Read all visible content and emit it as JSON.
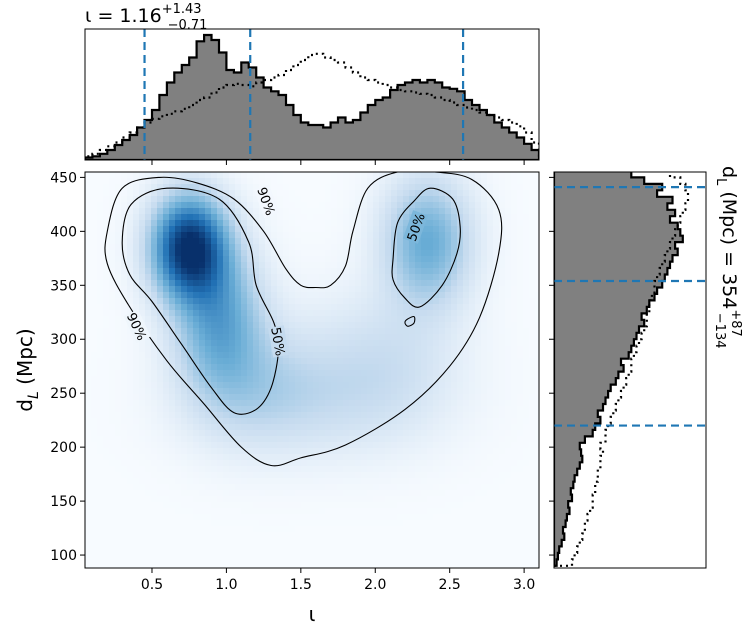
{
  "chart_data": [
    {
      "panel": "top-marginal",
      "type": "histogram",
      "title": {
        "symbol": "ι",
        "value": "1.16",
        "plus": "+1.43",
        "minus": "−0.71"
      },
      "xlim": [
        0.05,
        3.1
      ],
      "quantile_lines": [
        0.45,
        1.16,
        2.59
      ],
      "quantile_color": "#1f77b4",
      "series": [
        {
          "style": "filled-step",
          "fill": "#808080",
          "x": [
            0.05,
            0.1,
            0.15,
            0.2,
            0.25,
            0.3,
            0.35,
            0.4,
            0.45,
            0.5,
            0.55,
            0.6,
            0.65,
            0.7,
            0.75,
            0.8,
            0.85,
            0.9,
            0.95,
            1.0,
            1.05,
            1.1,
            1.15,
            1.2,
            1.25,
            1.3,
            1.35,
            1.4,
            1.45,
            1.5,
            1.55,
            1.6,
            1.65,
            1.7,
            1.75,
            1.8,
            1.85,
            1.9,
            1.95,
            2.0,
            2.05,
            2.1,
            2.15,
            2.2,
            2.25,
            2.3,
            2.35,
            2.4,
            2.45,
            2.5,
            2.55,
            2.6,
            2.65,
            2.7,
            2.75,
            2.8,
            2.85,
            2.9,
            2.95,
            3.0,
            3.05
          ],
          "values": [
            2,
            3,
            5,
            8,
            12,
            16,
            20,
            26,
            32,
            40,
            52,
            62,
            70,
            76,
            82,
            95,
            100,
            96,
            86,
            72,
            70,
            78,
            74,
            66,
            58,
            55,
            52,
            44,
            36,
            30,
            28,
            28,
            26,
            30,
            34,
            30,
            32,
            38,
            44,
            48,
            50,
            56,
            60,
            62,
            64,
            62,
            64,
            62,
            58,
            57,
            55,
            48,
            44,
            40,
            36,
            30,
            26,
            22,
            18,
            13,
            8
          ]
        },
        {
          "style": "dotted-step",
          "fill": "none",
          "x": [
            0.05,
            0.1,
            0.15,
            0.2,
            0.25,
            0.3,
            0.35,
            0.4,
            0.45,
            0.5,
            0.55,
            0.6,
            0.65,
            0.7,
            0.75,
            0.8,
            0.85,
            0.9,
            0.95,
            1.0,
            1.05,
            1.1,
            1.15,
            1.2,
            1.25,
            1.3,
            1.35,
            1.4,
            1.45,
            1.5,
            1.55,
            1.6,
            1.65,
            1.7,
            1.75,
            1.8,
            1.85,
            1.9,
            1.95,
            2.0,
            2.05,
            2.1,
            2.15,
            2.2,
            2.25,
            2.3,
            2.35,
            2.4,
            2.45,
            2.5,
            2.55,
            2.6,
            2.65,
            2.7,
            2.75,
            2.8,
            2.85,
            2.9,
            2.95,
            3.0,
            3.05
          ],
          "values": [
            3,
            5,
            8,
            11,
            14,
            18,
            22,
            26,
            30,
            33,
            35,
            37,
            39,
            41,
            44,
            48,
            50,
            54,
            58,
            60,
            61,
            60,
            59,
            62,
            64,
            66,
            68,
            72,
            76,
            80,
            84,
            85,
            82,
            80,
            78,
            74,
            70,
            66,
            64,
            62,
            60,
            58,
            56,
            55,
            54,
            53,
            52,
            50,
            48,
            46,
            44,
            42,
            40,
            38,
            36,
            34,
            32,
            30,
            27,
            22,
            14
          ]
        }
      ]
    },
    {
      "panel": "joint",
      "type": "heatmap",
      "xlabel": "ι",
      "ylabel": "dL (Mpc)",
      "xlim": [
        0.05,
        3.1
      ],
      "ylim": [
        88,
        455
      ],
      "xticks": [
        "0.5",
        "1.0",
        "1.5",
        "2.0",
        "2.5",
        "3.0"
      ],
      "yticks": [
        "100",
        "150",
        "200",
        "250",
        "300",
        "350",
        "400",
        "450"
      ],
      "colormap": [
        "#f7fbff",
        "#c6dbef",
        "#6baed6",
        "#2171b5",
        "#08306b"
      ],
      "density_blobs": [
        {
          "x": 0.75,
          "y": 385,
          "sx": 0.17,
          "sy": 32,
          "w": 1.0
        },
        {
          "x": 0.95,
          "y": 320,
          "sx": 0.2,
          "sy": 45,
          "w": 0.45
        },
        {
          "x": 1.2,
          "y": 260,
          "sx": 0.32,
          "sy": 40,
          "w": 0.18
        },
        {
          "x": 2.35,
          "y": 390,
          "sx": 0.2,
          "sy": 40,
          "w": 0.45
        },
        {
          "x": 2.05,
          "y": 280,
          "sx": 0.35,
          "sy": 45,
          "w": 0.15
        },
        {
          "x": 1.6,
          "y": 240,
          "sx": 0.5,
          "sy": 35,
          "w": 0.1
        }
      ],
      "contours": [
        {
          "label": "90%",
          "label_at": [
            0.4,
            312
          ],
          "label_at_2": [
            1.27,
            428
          ],
          "points": [
            [
              0.2,
              400
            ],
            [
              0.3,
              440
            ],
            [
              0.55,
              450
            ],
            [
              0.8,
              445
            ],
            [
              1.05,
              430
            ],
            [
              1.25,
              400
            ],
            [
              1.4,
              365
            ],
            [
              1.5,
              350
            ],
            [
              1.6,
              348
            ],
            [
              1.7,
              350
            ],
            [
              1.8,
              368
            ],
            [
              1.85,
              400
            ],
            [
              1.95,
              440
            ],
            [
              2.15,
              455
            ],
            [
              2.4,
              455
            ],
            [
              2.65,
              448
            ],
            [
              2.83,
              420
            ],
            [
              2.83,
              380
            ],
            [
              2.7,
              320
            ],
            [
              2.5,
              275
            ],
            [
              2.2,
              235
            ],
            [
              1.8,
              202
            ],
            [
              1.5,
              190
            ],
            [
              1.3,
              183
            ],
            [
              1.1,
              200
            ],
            [
              0.85,
              240
            ],
            [
              0.6,
              280
            ],
            [
              0.35,
              330
            ],
            [
              0.2,
              370
            ]
          ]
        },
        {
          "label": "50%",
          "label_at": [
            1.35,
            298
          ],
          "points": [
            [
              0.3,
              390
            ],
            [
              0.36,
              425
            ],
            [
              0.6,
              440
            ],
            [
              0.95,
              430
            ],
            [
              1.15,
              390
            ],
            [
              1.2,
              350
            ],
            [
              1.32,
              315
            ],
            [
              1.35,
              290
            ],
            [
              1.3,
              255
            ],
            [
              1.2,
              235
            ],
            [
              1.05,
              232
            ],
            [
              0.9,
              255
            ],
            [
              0.7,
              295
            ],
            [
              0.5,
              335
            ],
            [
              0.35,
              360
            ]
          ]
        },
        {
          "label": "50%",
          "label_at": [
            2.27,
            404
          ],
          "points": [
            [
              2.12,
              375
            ],
            [
              2.15,
              408
            ],
            [
              2.26,
              428
            ],
            [
              2.37,
              440
            ],
            [
              2.52,
              430
            ],
            [
              2.57,
              405
            ],
            [
              2.55,
              380
            ],
            [
              2.45,
              350
            ],
            [
              2.3,
              330
            ],
            [
              2.2,
              338
            ],
            [
              2.12,
              355
            ]
          ]
        },
        {
          "label": "",
          "label_at": [
            0,
            0
          ],
          "points": [
            [
              2.21,
              318
            ],
            [
              2.26,
              321
            ],
            [
              2.26,
              315
            ],
            [
              2.22,
              312
            ],
            [
              2.2,
              315
            ]
          ]
        }
      ]
    },
    {
      "panel": "right-marginal",
      "type": "histogram",
      "orientation": "horizontal",
      "title": {
        "symbol": "dL (Mpc)",
        "value": "354",
        "plus": "+87",
        "minus": "−134"
      },
      "ylim": [
        88,
        455
      ],
      "quantile_lines": [
        220,
        354,
        441
      ],
      "quantile_color": "#1f77b4",
      "series": [
        {
          "style": "filled-step",
          "fill": "#808080",
          "y": [
            90,
            96,
            102,
            108,
            114,
            120,
            126,
            132,
            138,
            144,
            150,
            156,
            162,
            168,
            174,
            180,
            186,
            192,
            198,
            204,
            210,
            216,
            222,
            228,
            234,
            240,
            246,
            252,
            258,
            264,
            270,
            276,
            282,
            288,
            294,
            300,
            306,
            312,
            318,
            324,
            330,
            336,
            342,
            348,
            354,
            360,
            366,
            372,
            378,
            384,
            390,
            396,
            402,
            408,
            414,
            420,
            426,
            432,
            438,
            444,
            450
          ],
          "values": [
            2,
            3,
            4,
            6,
            8,
            7,
            9,
            10,
            12,
            11,
            14,
            13,
            15,
            16,
            18,
            20,
            22,
            21,
            20,
            24,
            30,
            32,
            36,
            34,
            38,
            40,
            42,
            44,
            48,
            50,
            54,
            52,
            58,
            60,
            62,
            64,
            66,
            70,
            68,
            72,
            74,
            78,
            80,
            84,
            86,
            88,
            90,
            92,
            96,
            94,
            100,
            98,
            96,
            90,
            94,
            88,
            92,
            80,
            84,
            70,
            60
          ]
        },
        {
          "style": "dotted-step",
          "fill": "none",
          "y": [
            90,
            96,
            102,
            108,
            114,
            120,
            126,
            132,
            138,
            144,
            150,
            156,
            162,
            168,
            174,
            180,
            186,
            192,
            198,
            204,
            210,
            216,
            222,
            228,
            234,
            240,
            246,
            252,
            258,
            264,
            270,
            276,
            282,
            288,
            294,
            300,
            306,
            312,
            318,
            324,
            330,
            336,
            342,
            348,
            354,
            360,
            366,
            372,
            378,
            384,
            390,
            396,
            402,
            408,
            414,
            420,
            426,
            432,
            438,
            444,
            450
          ],
          "values": [
            14,
            16,
            18,
            20,
            22,
            24,
            24,
            26,
            28,
            30,
            30,
            32,
            32,
            34,
            34,
            36,
            36,
            38,
            36,
            40,
            40,
            42,
            44,
            46,
            48,
            50,
            52,
            54,
            56,
            58,
            60,
            60,
            62,
            64,
            66,
            68,
            70,
            72,
            72,
            74,
            74,
            76,
            78,
            78,
            80,
            82,
            84,
            86,
            88,
            90,
            92,
            94,
            96,
            98,
            100,
            102,
            104,
            104,
            102,
            98,
            90
          ]
        }
      ]
    }
  ],
  "text": {
    "top_title_prefix": "ι = 1.16",
    "top_title_sup": "+1.43",
    "top_title_sub": "−0.71",
    "x_axis_label": "ι",
    "y_axis_label_main": "d",
    "y_axis_label_sub": "L",
    "y_axis_label_rest": " (Mpc)",
    "right_title_main": "d",
    "right_title_sub": "L",
    "right_title_rest": " (Mpc) = 354",
    "right_title_sup": "+87",
    "right_title_subscript": "−134"
  }
}
